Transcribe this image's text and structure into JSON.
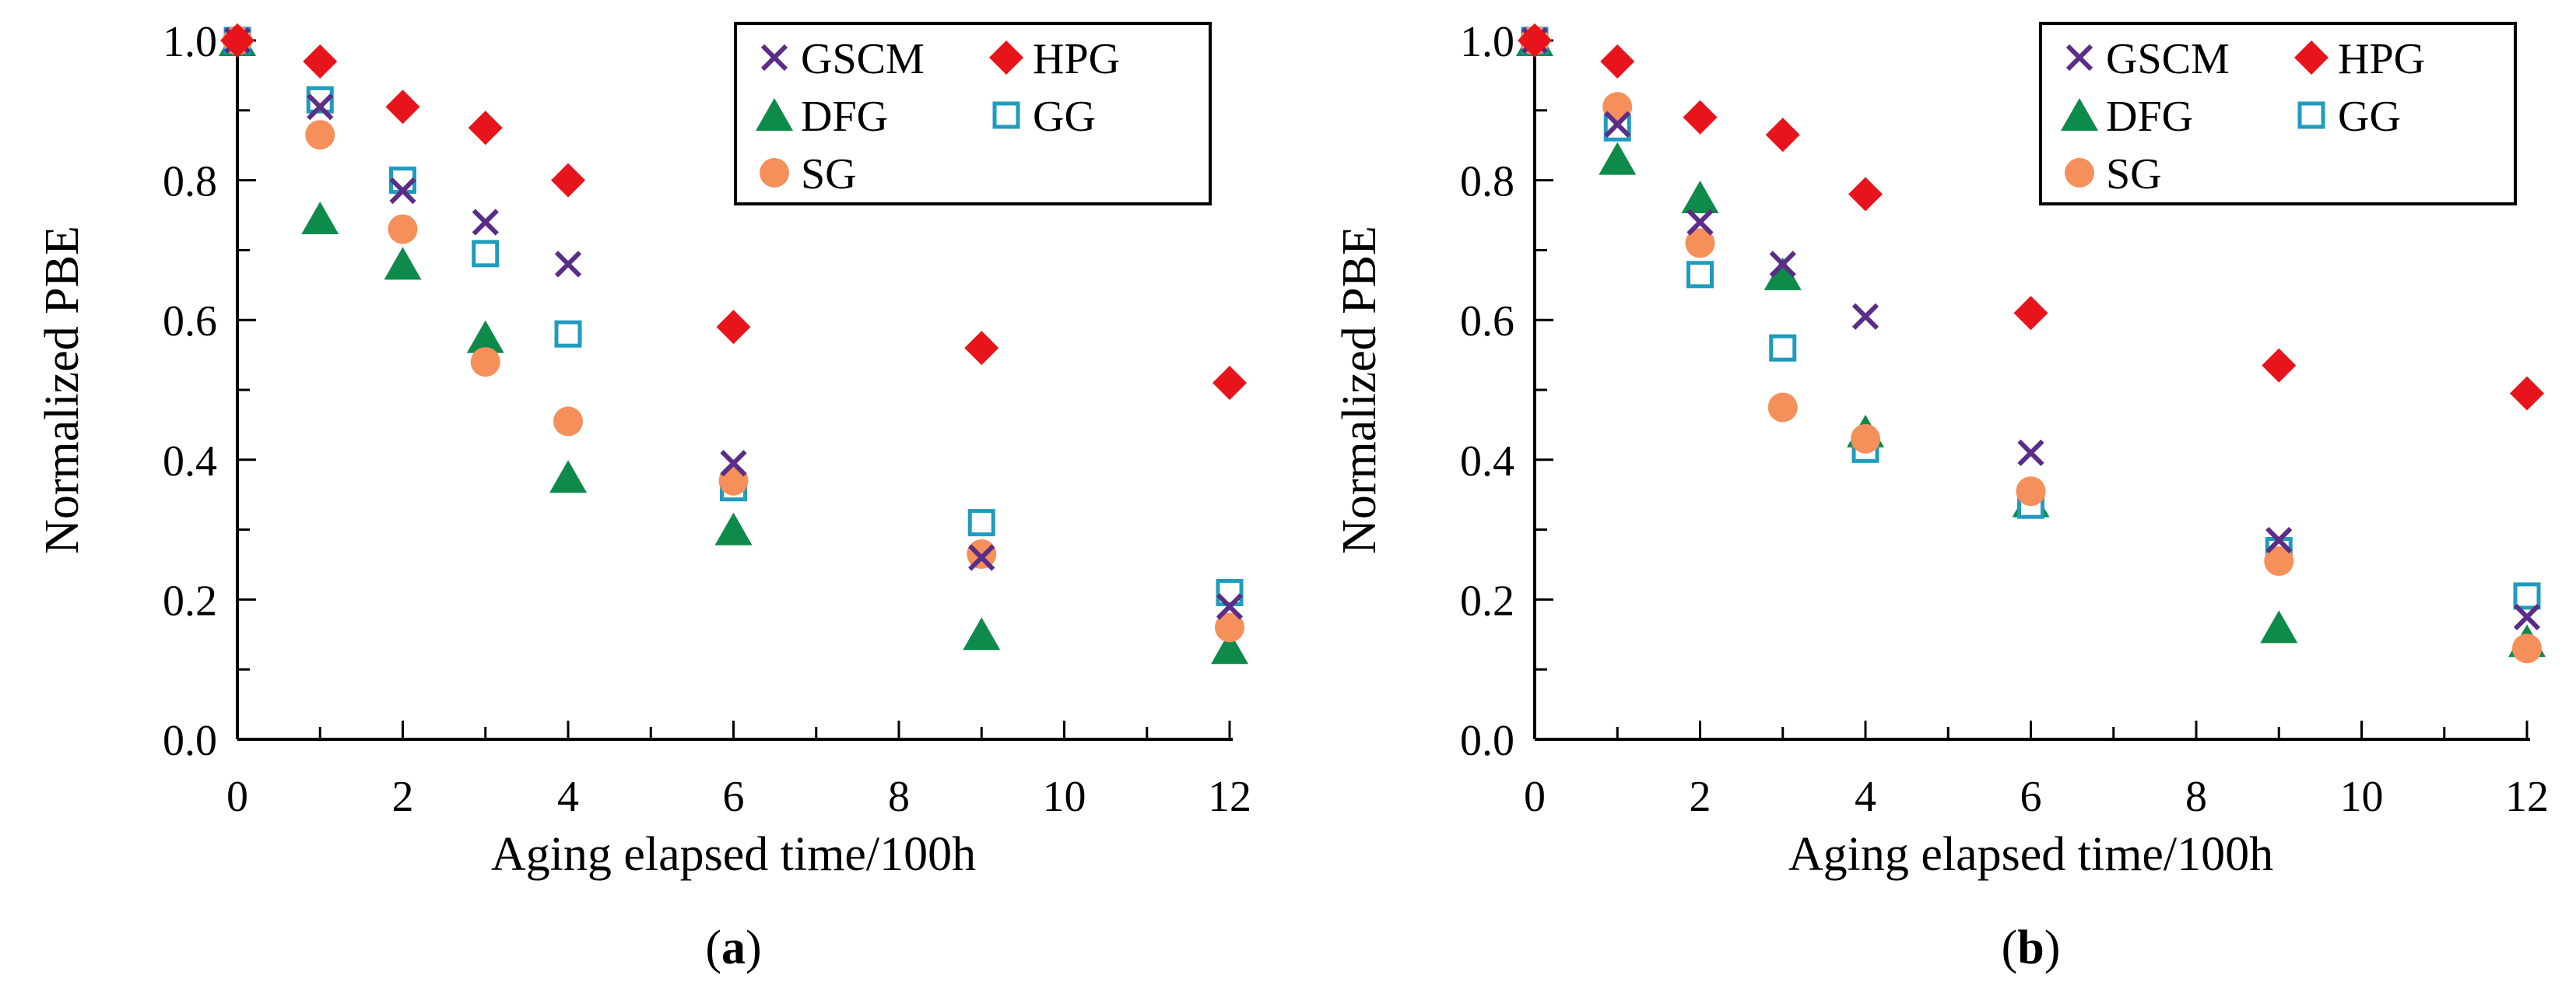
{
  "colors": {
    "GSCM": "#5b2d86",
    "HPG": "#e8141b",
    "DFG": "#0e8a4a",
    "GG": "#1f9bbd",
    "SG": "#f5905a"
  },
  "legend_markers": {
    "GSCM": "x",
    "HPG": "diamond",
    "DFG": "triangle",
    "GG": "open-square",
    "SG": "circle"
  },
  "chart_data": [
    {
      "type": "scatter",
      "panel_label": "(a)",
      "panel_letter": "a",
      "xlabel": "Aging elapsed time/100h",
      "ylabel": "Normalized PBE",
      "xlim": [
        0,
        12
      ],
      "ylim": [
        0,
        1.0
      ],
      "x_ticks": [
        "0",
        "2",
        "4",
        "6",
        "8",
        "10",
        "12"
      ],
      "y_ticks": [
        "0.0",
        "0.2",
        "0.4",
        "0.6",
        "0.8",
        "1.0"
      ],
      "grid": false,
      "legend_position": "top-right",
      "x": [
        0,
        1,
        2,
        3,
        4,
        6,
        9,
        12
      ],
      "series": [
        {
          "name": "GSCM",
          "values": [
            1.0,
            0.905,
            0.785,
            0.74,
            0.68,
            0.395,
            0.26,
            0.19
          ]
        },
        {
          "name": "HPG",
          "values": [
            1.0,
            0.97,
            0.905,
            0.875,
            0.8,
            0.59,
            0.56,
            0.51
          ]
        },
        {
          "name": "DFG",
          "values": [
            1.0,
            0.745,
            0.68,
            0.575,
            0.375,
            0.3,
            0.15,
            0.13
          ]
        },
        {
          "name": "GG",
          "values": [
            1.0,
            0.915,
            0.8,
            0.695,
            0.58,
            0.36,
            0.31,
            0.21
          ]
        },
        {
          "name": "SG",
          "values": [
            1.0,
            0.865,
            0.73,
            0.54,
            0.455,
            0.37,
            0.265,
            0.16
          ]
        }
      ]
    },
    {
      "type": "scatter",
      "panel_label": "(b)",
      "panel_letter": "b",
      "xlabel": "Aging elapsed time/100h",
      "ylabel": "Normalized PBE",
      "xlim": [
        0,
        12
      ],
      "ylim": [
        0,
        1.0
      ],
      "x_ticks": [
        "0",
        "2",
        "4",
        "6",
        "8",
        "10",
        "12"
      ],
      "y_ticks": [
        "0.0",
        "0.2",
        "0.4",
        "0.6",
        "0.8",
        "1.0"
      ],
      "grid": false,
      "legend_position": "top-right",
      "x": [
        0,
        1,
        2,
        3,
        4,
        6,
        9,
        12
      ],
      "series": [
        {
          "name": "GSCM",
          "values": [
            1.0,
            0.88,
            0.74,
            0.68,
            0.605,
            0.41,
            0.285,
            0.175
          ]
        },
        {
          "name": "HPG",
          "values": [
            1.0,
            0.97,
            0.89,
            0.865,
            0.78,
            0.61,
            0.535,
            0.495
          ]
        },
        {
          "name": "DFG",
          "values": [
            1.0,
            0.83,
            0.775,
            0.665,
            0.44,
            0.34,
            0.16,
            0.14
          ]
        },
        {
          "name": "GG",
          "values": [
            1.0,
            0.875,
            0.665,
            0.56,
            0.415,
            0.335,
            0.27,
            0.205
          ]
        },
        {
          "name": "SG",
          "values": [
            1.0,
            0.905,
            0.71,
            0.475,
            0.43,
            0.355,
            0.255,
            0.13
          ]
        }
      ]
    }
  ]
}
